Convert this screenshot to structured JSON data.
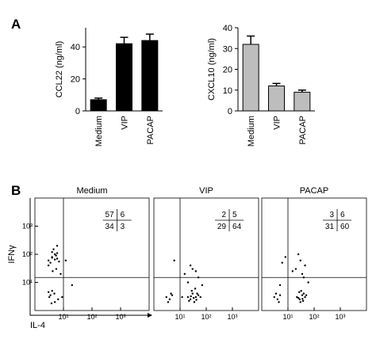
{
  "panel_labels": [
    "A",
    "B"
  ],
  "chart_data": [
    {
      "type": "bar",
      "y_label": "CCL22 (ng/ml)",
      "categories": [
        "Medium",
        "VIP",
        "PACAP"
      ],
      "values": [
        7,
        42,
        44
      ],
      "errors": [
        1,
        4,
        4
      ],
      "color": "#000000",
      "ylim": [
        0,
        52
      ],
      "yticks": [
        0,
        20,
        40
      ]
    },
    {
      "type": "bar",
      "y_label": "CXCL10 (ng/ml)",
      "categories": [
        "Medium",
        "VIP",
        "PACAP"
      ],
      "values": [
        32,
        12,
        9
      ],
      "errors": [
        4,
        1.2,
        1
      ],
      "color": "#bdbdbd",
      "ylim": [
        0,
        40
      ],
      "yticks": [
        0,
        10,
        20,
        30,
        40
      ]
    },
    {
      "type": "scatter",
      "title": "Medium",
      "x_label": "IL-4",
      "y_label": "IFNγ",
      "log": true,
      "xlim": [
        1,
        10000
      ],
      "ylim": [
        1,
        10000
      ],
      "gate_x": 10,
      "gate_y": 15,
      "xticks": [
        {
          "value": 10,
          "label": "10¹"
        },
        {
          "value": 100,
          "label": "10²"
        },
        {
          "value": 1000,
          "label": "10³"
        }
      ],
      "yticks": [
        {
          "value": 10,
          "label": "10¹"
        },
        {
          "value": 100,
          "label": "10²"
        },
        {
          "value": 1000,
          "label": "10³"
        }
      ],
      "quadrants": [
        57,
        6,
        34,
        3
      ],
      "x": [
        3,
        4,
        5,
        6,
        4,
        3.5,
        5.5,
        7,
        4.5,
        3,
        6,
        5,
        4,
        3.2,
        4.8,
        6.5,
        3.5,
        4,
        5,
        3,
        4.2,
        5.6,
        8,
        12,
        20,
        6,
        9,
        3.8
      ],
      "y": [
        60,
        80,
        100,
        70,
        120,
        50,
        90,
        55,
        150,
        40,
        110,
        65,
        75,
        3,
        4,
        2.5,
        3.5,
        5,
        2,
        4.5,
        25,
        30,
        20,
        60,
        8,
        200,
        3,
        1.8
      ]
    },
    {
      "type": "scatter",
      "title": "VIP",
      "log": true,
      "xlim": [
        1,
        10000
      ],
      "ylim": [
        1,
        10000
      ],
      "gate_x": 10,
      "gate_y": 15,
      "xticks": [
        {
          "value": 10,
          "label": "10¹"
        },
        {
          "value": 100,
          "label": "10²"
        },
        {
          "value": 1000,
          "label": "10³"
        }
      ],
      "quadrants": [
        2,
        5,
        29,
        64
      ],
      "x": [
        20,
        25,
        30,
        40,
        35,
        50,
        28,
        22,
        45,
        60,
        33,
        38,
        26,
        42,
        3,
        4,
        5,
        3.5,
        4.5,
        15,
        30,
        50,
        70,
        25,
        12,
        6,
        40,
        20
      ],
      "y": [
        3,
        2.5,
        4,
        3,
        2,
        3.5,
        5,
        2.2,
        4,
        3,
        2.8,
        6,
        3.2,
        2.4,
        3,
        2.5,
        3.5,
        2,
        4,
        20,
        30,
        15,
        8,
        40,
        3,
        60,
        25,
        10
      ]
    },
    {
      "type": "scatter",
      "title": "PACAP",
      "log": true,
      "xlim": [
        1,
        10000
      ],
      "ylim": [
        1,
        10000
      ],
      "gate_x": 10,
      "gate_y": 15,
      "xticks": [
        {
          "value": 10,
          "label": "10¹"
        },
        {
          "value": 100,
          "label": "10²"
        },
        {
          "value": 1000,
          "label": "10³"
        }
      ],
      "quadrants": [
        3,
        6,
        31,
        60
      ],
      "x": [
        22,
        28,
        35,
        30,
        40,
        45,
        25,
        32,
        38,
        50,
        27,
        36,
        3,
        4,
        5,
        4.5,
        3.5,
        6,
        20,
        35,
        60,
        8,
        30,
        45,
        15,
        25,
        5,
        40
      ],
      "y": [
        3,
        2.5,
        3.5,
        2,
        4,
        3,
        2.8,
        5,
        2.2,
        3.5,
        4.5,
        2.6,
        3,
        2.5,
        3.5,
        2,
        4,
        50,
        30,
        20,
        10,
        80,
        60,
        40,
        25,
        100,
        8,
        15
      ]
    }
  ]
}
